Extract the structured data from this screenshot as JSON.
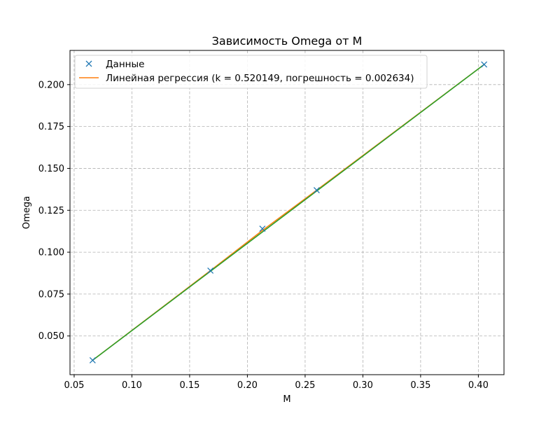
{
  "chart_data": {
    "type": "line",
    "title": "Зависимость Omega от M",
    "xlabel": "M",
    "ylabel": "Omega",
    "xlim": [
      0.0464,
      0.4222
    ],
    "ylim": [
      0.0269,
      0.2204
    ],
    "xticks": [
      0.05,
      0.1,
      0.15,
      0.2,
      0.25,
      0.3,
      0.35,
      0.4
    ],
    "xtick_labels": [
      "0.05",
      "0.10",
      "0.15",
      "0.20",
      "0.25",
      "0.30",
      "0.35",
      "0.40"
    ],
    "yticks": [
      0.05,
      0.075,
      0.1,
      0.125,
      0.15,
      0.175,
      0.2
    ],
    "ytick_labels": [
      "0.050",
      "0.075",
      "0.100",
      "0.125",
      "0.150",
      "0.175",
      "0.200"
    ],
    "grid": true,
    "legend_position": "top-left",
    "series": [
      {
        "name": "Данные",
        "kind": "scatter",
        "marker": "x",
        "color": "#1f77b4",
        "x": [
          0.066,
          0.168,
          0.213,
          0.26,
          0.405
        ],
        "y": [
          0.0355,
          0.089,
          0.114,
          0.137,
          0.212
        ]
      },
      {
        "name": "Линейная регрессия (k = 0.520149, погрешность = 0.002634)",
        "kind": "line",
        "color": "#ff7f0e",
        "x": [
          0.066,
          0.168,
          0.213,
          0.26,
          0.405
        ],
        "y": [
          0.0355,
          0.089,
          0.113,
          0.137,
          0.212
        ]
      },
      {
        "kind": "line",
        "color": "#2ca02c",
        "x": [
          0.066,
          0.405
        ],
        "y": [
          0.0355,
          0.212
        ]
      }
    ]
  }
}
